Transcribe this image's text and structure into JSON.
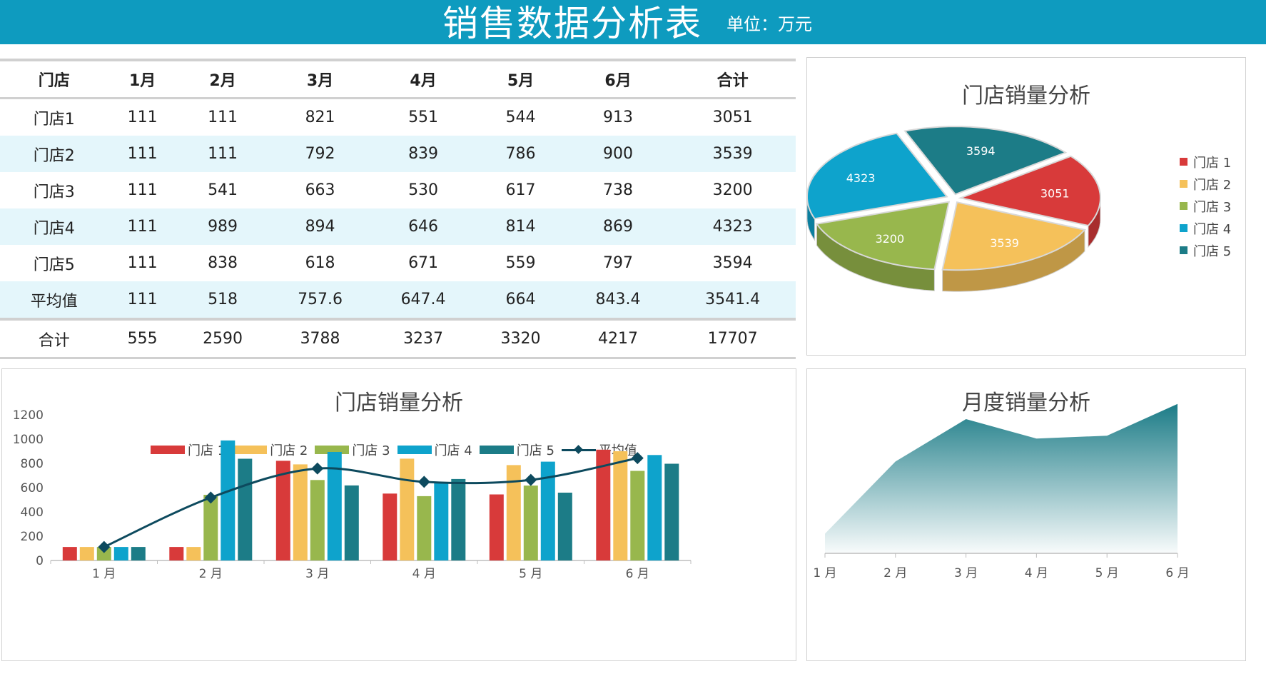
{
  "header": {
    "title": "销售数据分析表",
    "unit": "单位：万元"
  },
  "table": {
    "columns": [
      "门店",
      "1月",
      "2月",
      "3月",
      "4月",
      "5月",
      "6月",
      "合计"
    ],
    "rows": [
      [
        "门店1",
        "111",
        "111",
        "821",
        "551",
        "544",
        "913",
        "3051"
      ],
      [
        "门店2",
        "111",
        "111",
        "792",
        "839",
        "786",
        "900",
        "3539"
      ],
      [
        "门店3",
        "111",
        "541",
        "663",
        "530",
        "617",
        "738",
        "3200"
      ],
      [
        "门店4",
        "111",
        "989",
        "894",
        "646",
        "814",
        "869",
        "4323"
      ],
      [
        "门店5",
        "111",
        "838",
        "618",
        "671",
        "559",
        "797",
        "3594"
      ],
      [
        "平均值",
        "111",
        "518",
        "757.6",
        "647.4",
        "664",
        "843.4",
        "3541.4"
      ]
    ],
    "total": [
      "合计",
      "555",
      "2590",
      "3788",
      "3237",
      "3320",
      "4217",
      "17707"
    ]
  },
  "colors": {
    "store1": "#D83A3A",
    "store2": "#F5C15A",
    "store3": "#98B74D",
    "store4": "#0EA3CC",
    "store5": "#1C7C87",
    "average": "#0D4A5E",
    "banner": "#0E9BBF",
    "area": "#1C7C87"
  },
  "chart_data": [
    {
      "type": "pie",
      "title": "门店销量分析",
      "labels": [
        "门店 1",
        "门店 2",
        "门店 3",
        "门店 4",
        "门店 5"
      ],
      "values": [
        3051,
        3539,
        3200,
        4323,
        3594
      ],
      "value_labels": [
        "3051",
        "3539",
        "3200",
        "4323",
        "3594"
      ],
      "legend": "right"
    },
    {
      "type": "bar",
      "title": "门店销量分析",
      "categories": [
        "1 月",
        "2 月",
        "3 月",
        "4 月",
        "5 月",
        "6 月"
      ],
      "series": [
        {
          "name": "门店 1",
          "values": [
            111,
            111,
            821,
            551,
            544,
            913
          ]
        },
        {
          "name": "门店 2",
          "values": [
            111,
            111,
            792,
            839,
            786,
            900
          ]
        },
        {
          "name": "门店 3",
          "values": [
            111,
            541,
            663,
            530,
            617,
            738
          ]
        },
        {
          "name": "门店 4",
          "values": [
            111,
            989,
            894,
            646,
            814,
            869
          ]
        },
        {
          "name": "门店 5",
          "values": [
            111,
            838,
            618,
            671,
            559,
            797
          ]
        }
      ],
      "line_series": {
        "name": "平均值",
        "values": [
          111,
          518,
          757.6,
          647.4,
          664,
          843.4
        ]
      },
      "ylim": [
        0,
        1200
      ],
      "yticks": [
        "0",
        "200",
        "400",
        "600",
        "800",
        "1000",
        "1200"
      ],
      "legend": "top"
    },
    {
      "type": "area",
      "title": "月度销量分析",
      "categories": [
        "1 月",
        "2 月",
        "3 月",
        "4 月",
        "5 月",
        "6 月"
      ],
      "values": [
        555,
        2590,
        3788,
        3237,
        3320,
        4217
      ]
    }
  ]
}
